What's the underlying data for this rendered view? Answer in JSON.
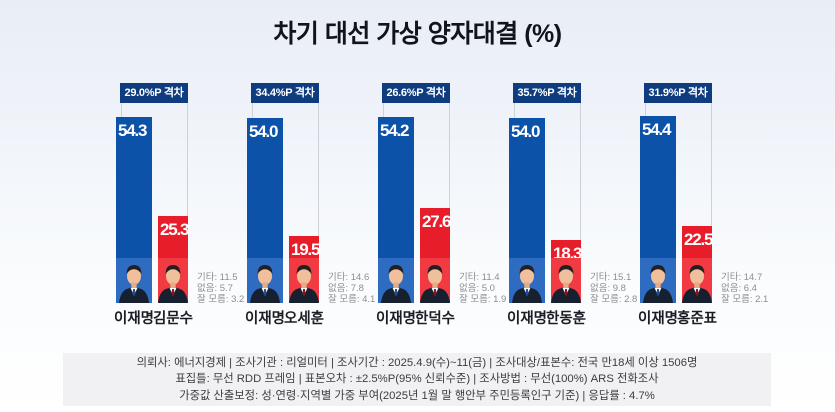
{
  "title": "차기 대선 가상 양자대결 (%)",
  "colors": {
    "lee_bar": "#0b52a8",
    "opponent_bar": "#e71e2a",
    "gap_badge": "#0e3c7f",
    "background_top": "#e9eef6",
    "footer_box": "#f1f1f4"
  },
  "matchups": [
    {
      "gap_label": "29.0%P 격차",
      "lee": {
        "name": "이재명",
        "value": "54.3"
      },
      "opp": {
        "name": "김문수",
        "value": "25.3"
      },
      "notes": [
        "기타: 11.5",
        "없음: 5.7",
        "잘 모름: 3.2"
      ]
    },
    {
      "gap_label": "34.4%P 격차",
      "lee": {
        "name": "이재명",
        "value": "54.0"
      },
      "opp": {
        "name": "오세훈",
        "value": "19.5"
      },
      "notes": [
        "기타: 14.6",
        "없음: 7.8",
        "잘 모름: 4.1"
      ]
    },
    {
      "gap_label": "26.6%P 격차",
      "lee": {
        "name": "이재명",
        "value": "54.2"
      },
      "opp": {
        "name": "한덕수",
        "value": "27.6"
      },
      "notes": [
        "기타: 11.4",
        "없음: 5.0",
        "잘 모름: 1.9"
      ]
    },
    {
      "gap_label": "35.7%P 격차",
      "lee": {
        "name": "이재명",
        "value": "54.0"
      },
      "opp": {
        "name": "한동훈",
        "value": "18.3"
      },
      "notes": [
        "기타: 15.1",
        "없음: 9.8",
        "잘 모름: 2.8"
      ]
    },
    {
      "gap_label": "31.9%P 격차",
      "lee": {
        "name": "이재명",
        "value": "54.4"
      },
      "opp": {
        "name": "홍준표",
        "value": "22.5"
      },
      "notes": [
        "기타: 14.7",
        "없음: 6.4",
        "잘 모름: 2.1"
      ]
    }
  ],
  "footer": {
    "lines": [
      "의뢰사: 에너지경제 | 조사기관 : 리얼미터  |  조사기간 : 2025.4.9(수)~11(금) | 조사대상/표본수: 전국 만18세 이상 1506명",
      "표집틀: 무선 RDD 프레임 | 표본오차 : ±2.5%P(95% 신뢰수준) | 조사방법 : 무선(100%) ARS 전화조사",
      "가중값 산출보정: 성·연령·지역별 가중 부여(2025년 1월 말 행안부 주민등록인구 기준) | 응답률 : 4.7%"
    ]
  },
  "chart_data": {
    "type": "bar",
    "title": "차기 대선 가상 양자대결 (%)",
    "unit": "%",
    "legend": "none",
    "grid": false,
    "ylim": [
      0,
      60
    ],
    "groups": [
      {
        "gap_pct_points": 29.0,
        "candidates": [
          "이재명",
          "김문수"
        ],
        "values": [
          54.3,
          25.3
        ],
        "etc": 11.5,
        "none": 5.7,
        "dont_know": 3.2
      },
      {
        "gap_pct_points": 34.4,
        "candidates": [
          "이재명",
          "오세훈"
        ],
        "values": [
          54.0,
          19.5
        ],
        "etc": 14.6,
        "none": 7.8,
        "dont_know": 4.1
      },
      {
        "gap_pct_points": 26.6,
        "candidates": [
          "이재명",
          "한덕수"
        ],
        "values": [
          54.2,
          27.6
        ],
        "etc": 11.4,
        "none": 5.0,
        "dont_know": 1.9
      },
      {
        "gap_pct_points": 35.7,
        "candidates": [
          "이재명",
          "한동훈"
        ],
        "values": [
          54.0,
          18.3
        ],
        "etc": 15.1,
        "none": 9.8,
        "dont_know": 2.8
      },
      {
        "gap_pct_points": 31.9,
        "candidates": [
          "이재명",
          "홍준표"
        ],
        "values": [
          54.4,
          22.5
        ],
        "etc": 14.7,
        "none": 6.4,
        "dont_know": 2.1
      }
    ],
    "series_colors": {
      "이재명": "#0b52a8",
      "opponent": "#e71e2a"
    }
  }
}
